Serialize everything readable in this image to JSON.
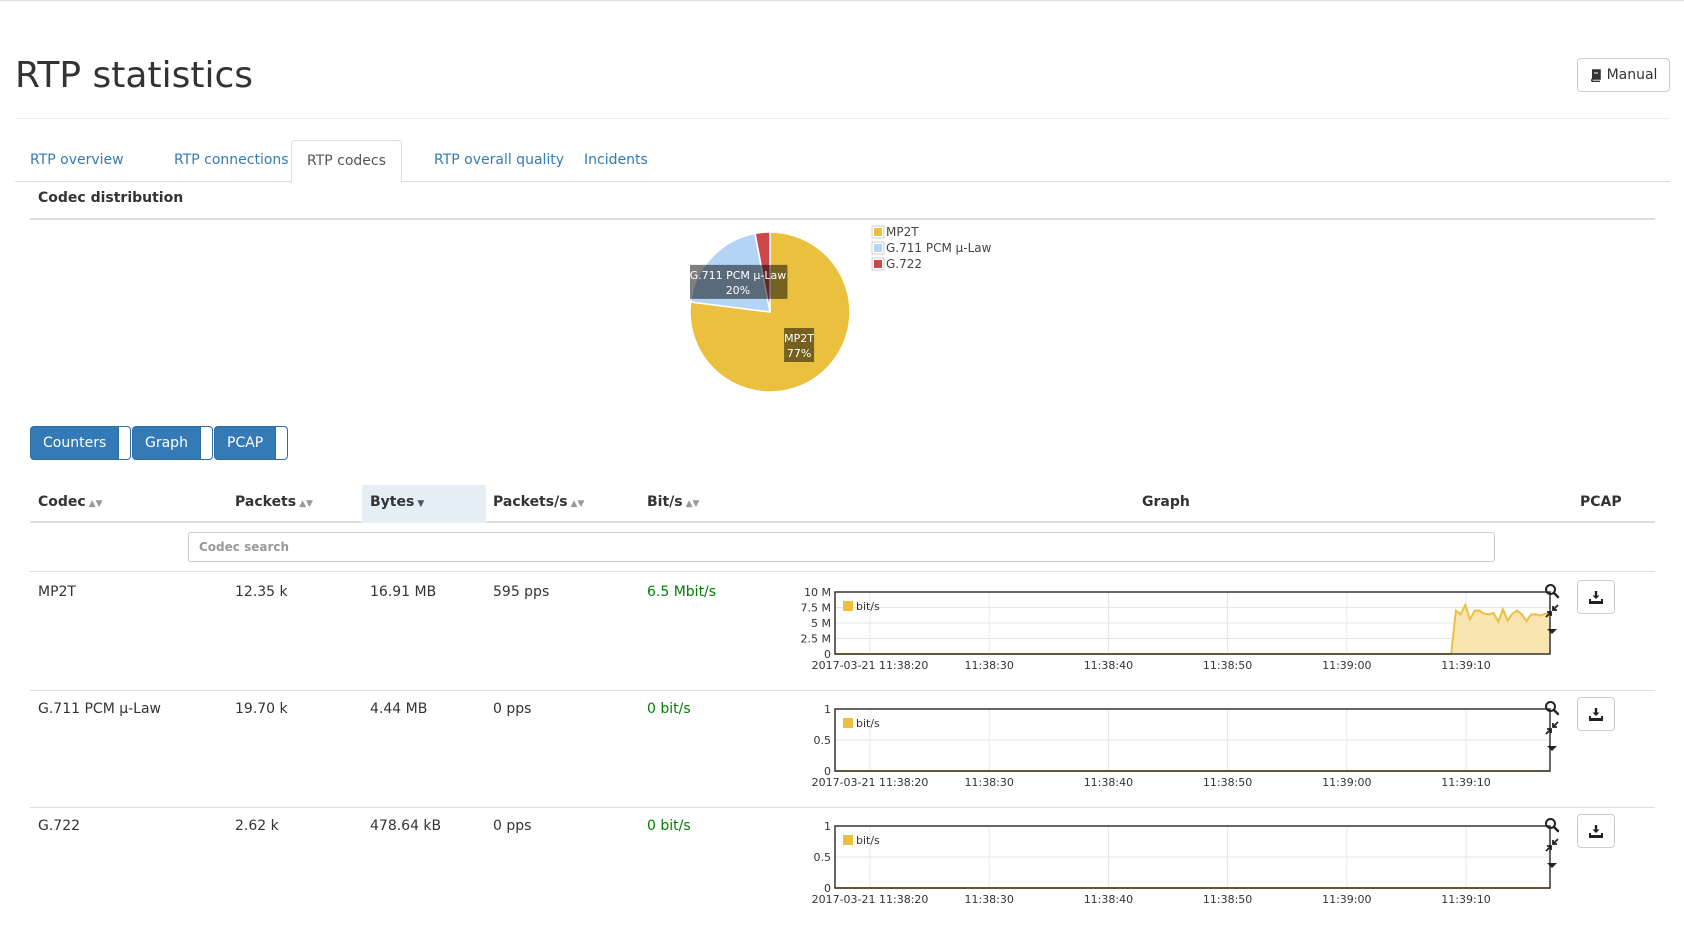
{
  "page": {
    "title": "RTP statistics",
    "manual_label": "Manual"
  },
  "tabs": [
    {
      "label": "RTP overview",
      "active": false
    },
    {
      "label": "RTP connections",
      "active": false
    },
    {
      "label": "RTP codecs",
      "active": true
    },
    {
      "label": "RTP overall quality",
      "active": false
    },
    {
      "label": "Incidents",
      "active": false
    }
  ],
  "distribution": {
    "title": "Codec distribution",
    "chart_data": {
      "type": "pie",
      "slices": [
        {
          "label": "MP2T",
          "percent": 77,
          "label_text": "77%",
          "color": "#ebc03f"
        },
        {
          "label": "G.711 PCM µ-Law",
          "percent": 20,
          "label_text": "20%",
          "color": "#b3d4f5"
        },
        {
          "label": "G.722",
          "percent": 3,
          "label_text": "",
          "color": "#cd4848"
        }
      ],
      "legend": [
        "MP2T",
        "G.711 PCM µ-Law",
        "G.722"
      ],
      "legend_position": "right"
    }
  },
  "column_toggles": [
    "Counters",
    "Graph",
    "PCAP"
  ],
  "table": {
    "columns": [
      {
        "label": "Codec",
        "sortable": true
      },
      {
        "label": "Packets",
        "sortable": true
      },
      {
        "label": "Bytes",
        "sortable": true,
        "sorted": "desc"
      },
      {
        "label": "Packets/s",
        "sortable": true
      },
      {
        "label": "Bit/s",
        "sortable": true
      },
      {
        "label": "Graph",
        "sortable": false
      },
      {
        "label": "PCAP",
        "sortable": false
      }
    ],
    "search_placeholder": "Codec search",
    "rows": [
      {
        "codec": "MP2T",
        "packets": "12.35 k",
        "bytes": "16.91 MB",
        "pps": "595 pps",
        "bitrate": "6.5 Mbit/s",
        "graph": {
          "series_name": "bit/s",
          "y_ticks": [
            "10 M",
            "7.5 M",
            "5 M",
            "2.5 M",
            "0"
          ],
          "ylim": [
            0,
            10000000
          ],
          "x_ticks": [
            "2017-03-21 11:38:20",
            "11:38:30",
            "11:38:40",
            "11:38:50",
            "11:39:00",
            "11:39:10"
          ],
          "values": [
            0,
            0,
            0,
            0,
            0,
            0,
            0,
            0,
            0,
            0,
            0,
            0,
            0,
            0,
            0,
            0,
            0,
            0,
            0,
            0,
            0,
            0,
            0,
            0,
            0,
            0,
            0,
            0,
            0,
            0,
            0,
            0,
            0,
            0,
            0,
            0,
            0,
            0,
            0,
            0,
            0,
            0,
            0,
            0,
            0,
            0,
            0,
            0,
            0,
            0,
            0,
            0,
            0,
            0,
            0,
            0,
            0,
            0,
            0,
            0,
            0,
            0,
            0,
            0,
            0,
            0,
            0,
            0,
            0,
            0,
            0,
            0,
            0,
            0,
            0,
            0,
            0,
            0,
            0,
            0,
            0,
            0,
            0,
            0,
            0,
            0,
            0,
            0,
            0,
            0,
            0,
            0,
            0,
            0,
            0,
            0,
            0,
            0,
            0,
            0,
            0,
            0,
            0,
            0,
            0,
            0,
            0,
            0,
            0,
            0,
            0,
            0,
            0,
            0,
            0,
            0,
            0,
            0,
            0,
            0,
            0,
            0,
            0,
            0,
            0,
            0,
            0,
            0,
            0,
            0,
            0,
            0,
            7000000,
            6400000,
            7900000,
            5600000,
            7000000,
            7000000,
            6500000,
            6400000,
            6600000,
            5200000,
            7200000,
            5400000,
            6500000,
            7000000,
            6400000,
            5300000,
            6400000,
            6400000,
            6200000,
            6500000,
            6500000
          ]
        }
      },
      {
        "codec": "G.711 PCM µ-Law",
        "packets": "19.70 k",
        "bytes": "4.44 MB",
        "pps": "0 pps",
        "bitrate": "0 bit/s",
        "graph": {
          "series_name": "bit/s",
          "y_ticks": [
            "1",
            "0.5",
            "0"
          ],
          "ylim": [
            0,
            1
          ],
          "x_ticks": [
            "2017-03-21 11:38:20",
            "11:38:30",
            "11:38:40",
            "11:38:50",
            "11:39:00",
            "11:39:10"
          ],
          "values": [
            0,
            0
          ]
        }
      },
      {
        "codec": "G.722",
        "packets": "2.62 k",
        "bytes": "478.64 kB",
        "pps": "0 pps",
        "bitrate": "0 bit/s",
        "graph": {
          "series_name": "bit/s",
          "y_ticks": [
            "1",
            "0.5",
            "0"
          ],
          "ylim": [
            0,
            1
          ],
          "x_ticks": [
            "2017-03-21 11:38:20",
            "11:38:30",
            "11:38:40",
            "11:38:50",
            "11:39:00",
            "11:39:10"
          ],
          "values": [
            0,
            0
          ]
        }
      }
    ]
  },
  "colors": {
    "link": "#337ab7",
    "primary": "#337ab7",
    "series": "#ebc03f",
    "series_fill": "#f7e2a8",
    "rate_text": "#008000"
  }
}
